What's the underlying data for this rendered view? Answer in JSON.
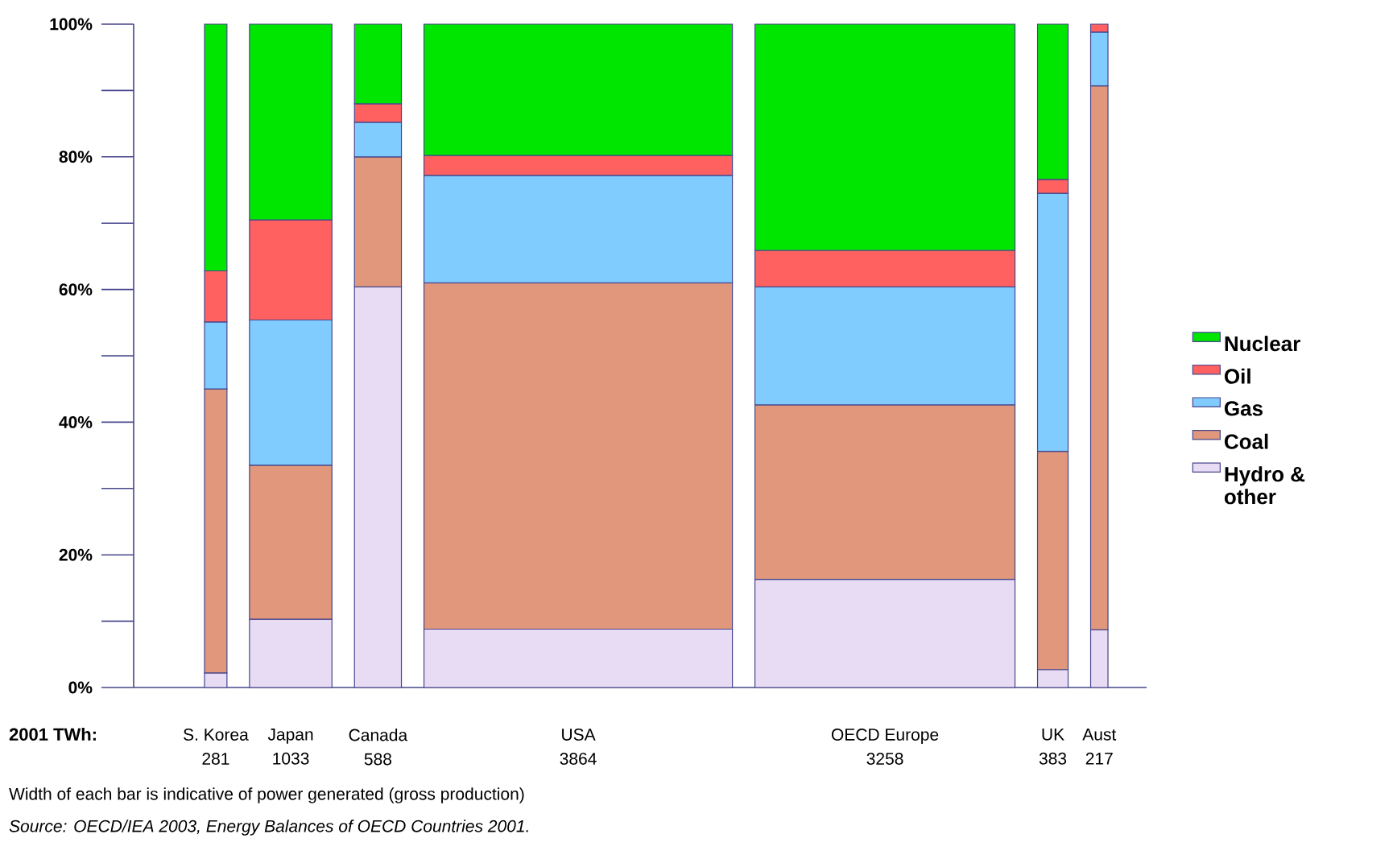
{
  "chart_data": {
    "type": "bar",
    "stacked": true,
    "categories": [
      "S. Korea",
      "Japan",
      "Canada",
      "USA",
      "OECD Europe",
      "UK",
      "Aust"
    ],
    "series": [
      {
        "name": "Hydro & other",
        "color": "#e8dcf5",
        "values": [
          2.2,
          10.3,
          60.4,
          8.8,
          16.3,
          2.7,
          8.7
        ]
      },
      {
        "name": "Coal",
        "color": "#e0977b",
        "values": [
          42.8,
          23.2,
          19.6,
          52.2,
          26.3,
          32.9,
          82.0
        ]
      },
      {
        "name": "Gas",
        "color": "#80ccff",
        "values": [
          10.1,
          21.9,
          5.2,
          16.2,
          17.8,
          38.9,
          8.1
        ]
      },
      {
        "name": "Oil",
        "color": "#ff6060",
        "values": [
          7.7,
          15.1,
          2.8,
          3.0,
          5.5,
          2.1,
          1.2
        ]
      },
      {
        "name": "Nuclear",
        "color": "#00e600",
        "values": [
          37.2,
          29.5,
          12.0,
          19.8,
          34.1,
          23.4,
          0
        ]
      }
    ],
    "ylim": [
      0,
      100
    ],
    "yticks": [
      {
        "value": 0,
        "label": "0%"
      },
      {
        "value": 20,
        "label": "20%"
      },
      {
        "value": 40,
        "label": "40%"
      },
      {
        "value": 60,
        "label": "60%"
      },
      {
        "value": 80,
        "label": "80%"
      },
      {
        "value": 100,
        "label": "100%"
      }
    ],
    "legend": "right",
    "annotations": [
      "2001 TWh:",
      "281",
      "1033",
      "588",
      "3864",
      "3258",
      "383",
      "217",
      "Width of each bar is indicative of power generated (gross production)",
      "Source: OECD/IEA 2003, Energy Balances of OECD Countries 2001."
    ]
  }
}
